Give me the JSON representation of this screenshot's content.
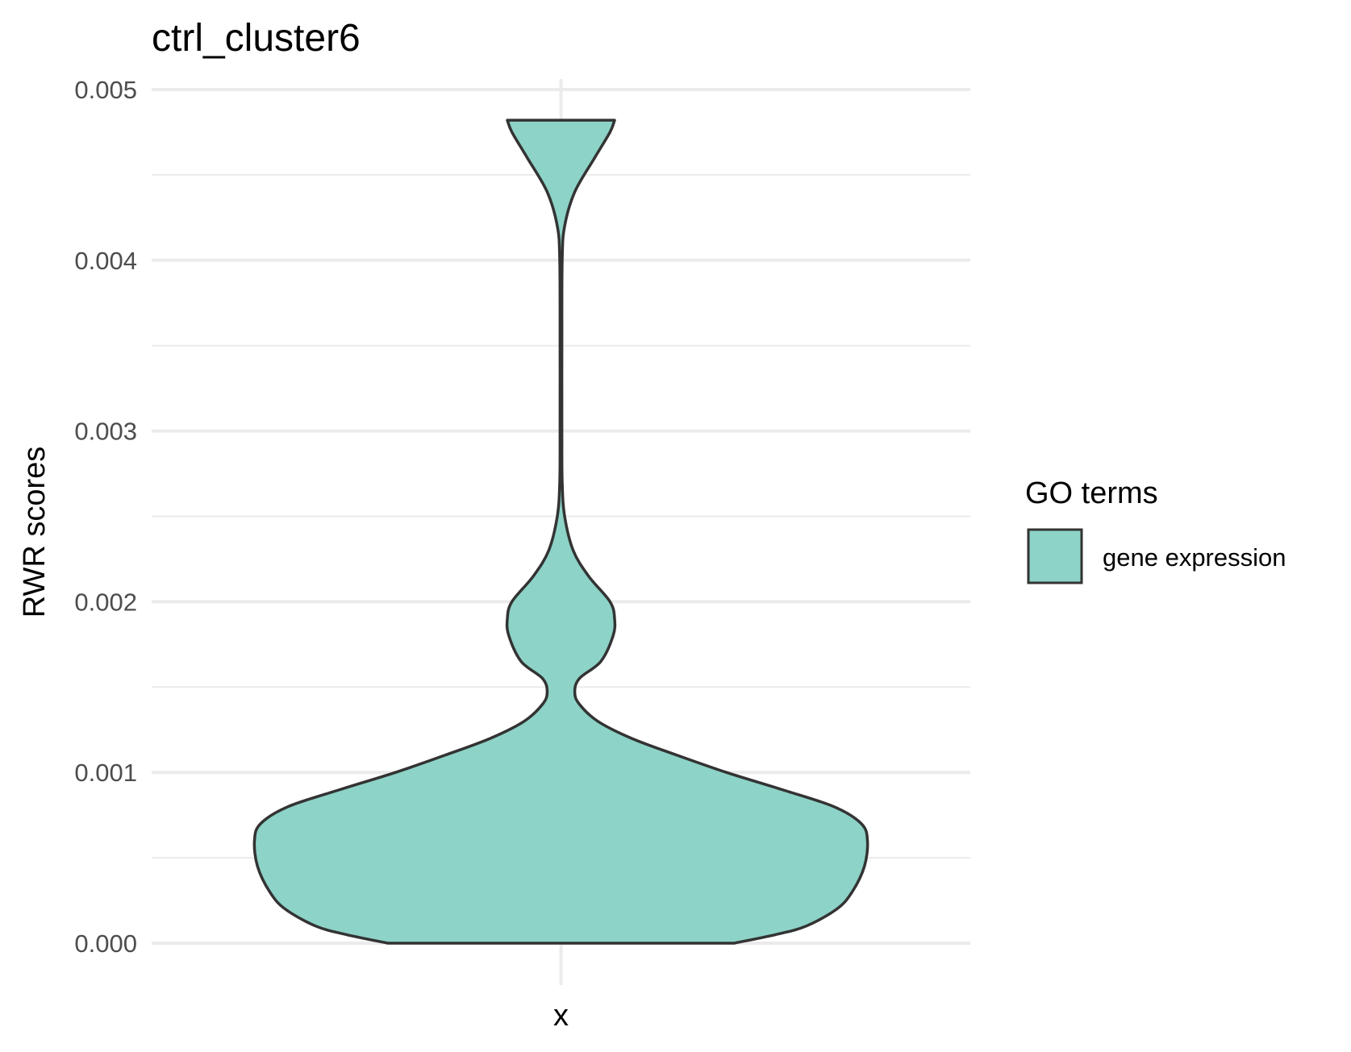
{
  "chart_data": {
    "type": "violin",
    "title": "ctrl_cluster6",
    "xlabel": "",
    "ylabel": "RWR scores",
    "categories": [
      "x"
    ],
    "ylim": [
      0,
      0.005
    ],
    "y_ticks": [
      0.0,
      0.001,
      0.002,
      0.003,
      0.004,
      0.005
    ],
    "y_tick_labels": [
      "0.000",
      "0.001",
      "0.002",
      "0.003",
      "0.004",
      "0.005"
    ],
    "grid": true,
    "legend": {
      "title": "GO terms",
      "position": "right",
      "entries": [
        {
          "label": "gene expression",
          "color": "#8dd3c7"
        }
      ]
    },
    "series": [
      {
        "name": "gene expression",
        "category": "x",
        "fill": "#8dd3c7",
        "stroke": "#333333",
        "density_profile": [
          {
            "y": 0.0,
            "w": 0.565
          },
          {
            "y": 5e-05,
            "w": 0.7
          },
          {
            "y": 0.0001,
            "w": 0.8
          },
          {
            "y": 0.0002,
            "w": 0.9
          },
          {
            "y": 0.0003,
            "w": 0.95
          },
          {
            "y": 0.00045,
            "w": 0.99
          },
          {
            "y": 0.0006,
            "w": 1.0
          },
          {
            "y": 0.0007,
            "w": 0.98
          },
          {
            "y": 0.0008,
            "w": 0.89
          },
          {
            "y": 0.0009,
            "w": 0.72
          },
          {
            "y": 0.001,
            "w": 0.54
          },
          {
            "y": 0.0011,
            "w": 0.38
          },
          {
            "y": 0.0012,
            "w": 0.23
          },
          {
            "y": 0.0013,
            "w": 0.12
          },
          {
            "y": 0.0014,
            "w": 0.06
          },
          {
            "y": 0.00147,
            "w": 0.045
          },
          {
            "y": 0.00155,
            "w": 0.06
          },
          {
            "y": 0.00165,
            "w": 0.13
          },
          {
            "y": 0.0018,
            "w": 0.17
          },
          {
            "y": 0.0019,
            "w": 0.175
          },
          {
            "y": 0.002,
            "w": 0.16
          },
          {
            "y": 0.00215,
            "w": 0.09
          },
          {
            "y": 0.0023,
            "w": 0.04
          },
          {
            "y": 0.0025,
            "w": 0.012
          },
          {
            "y": 0.0027,
            "w": 0.004
          },
          {
            "y": 0.003,
            "w": 0.003
          },
          {
            "y": 0.0035,
            "w": 0.003
          },
          {
            "y": 0.004,
            "w": 0.004
          },
          {
            "y": 0.0042,
            "w": 0.012
          },
          {
            "y": 0.0044,
            "w": 0.045
          },
          {
            "y": 0.0046,
            "w": 0.11
          },
          {
            "y": 0.00475,
            "w": 0.16
          },
          {
            "y": 0.00482,
            "w": 0.175
          }
        ]
      }
    ]
  }
}
